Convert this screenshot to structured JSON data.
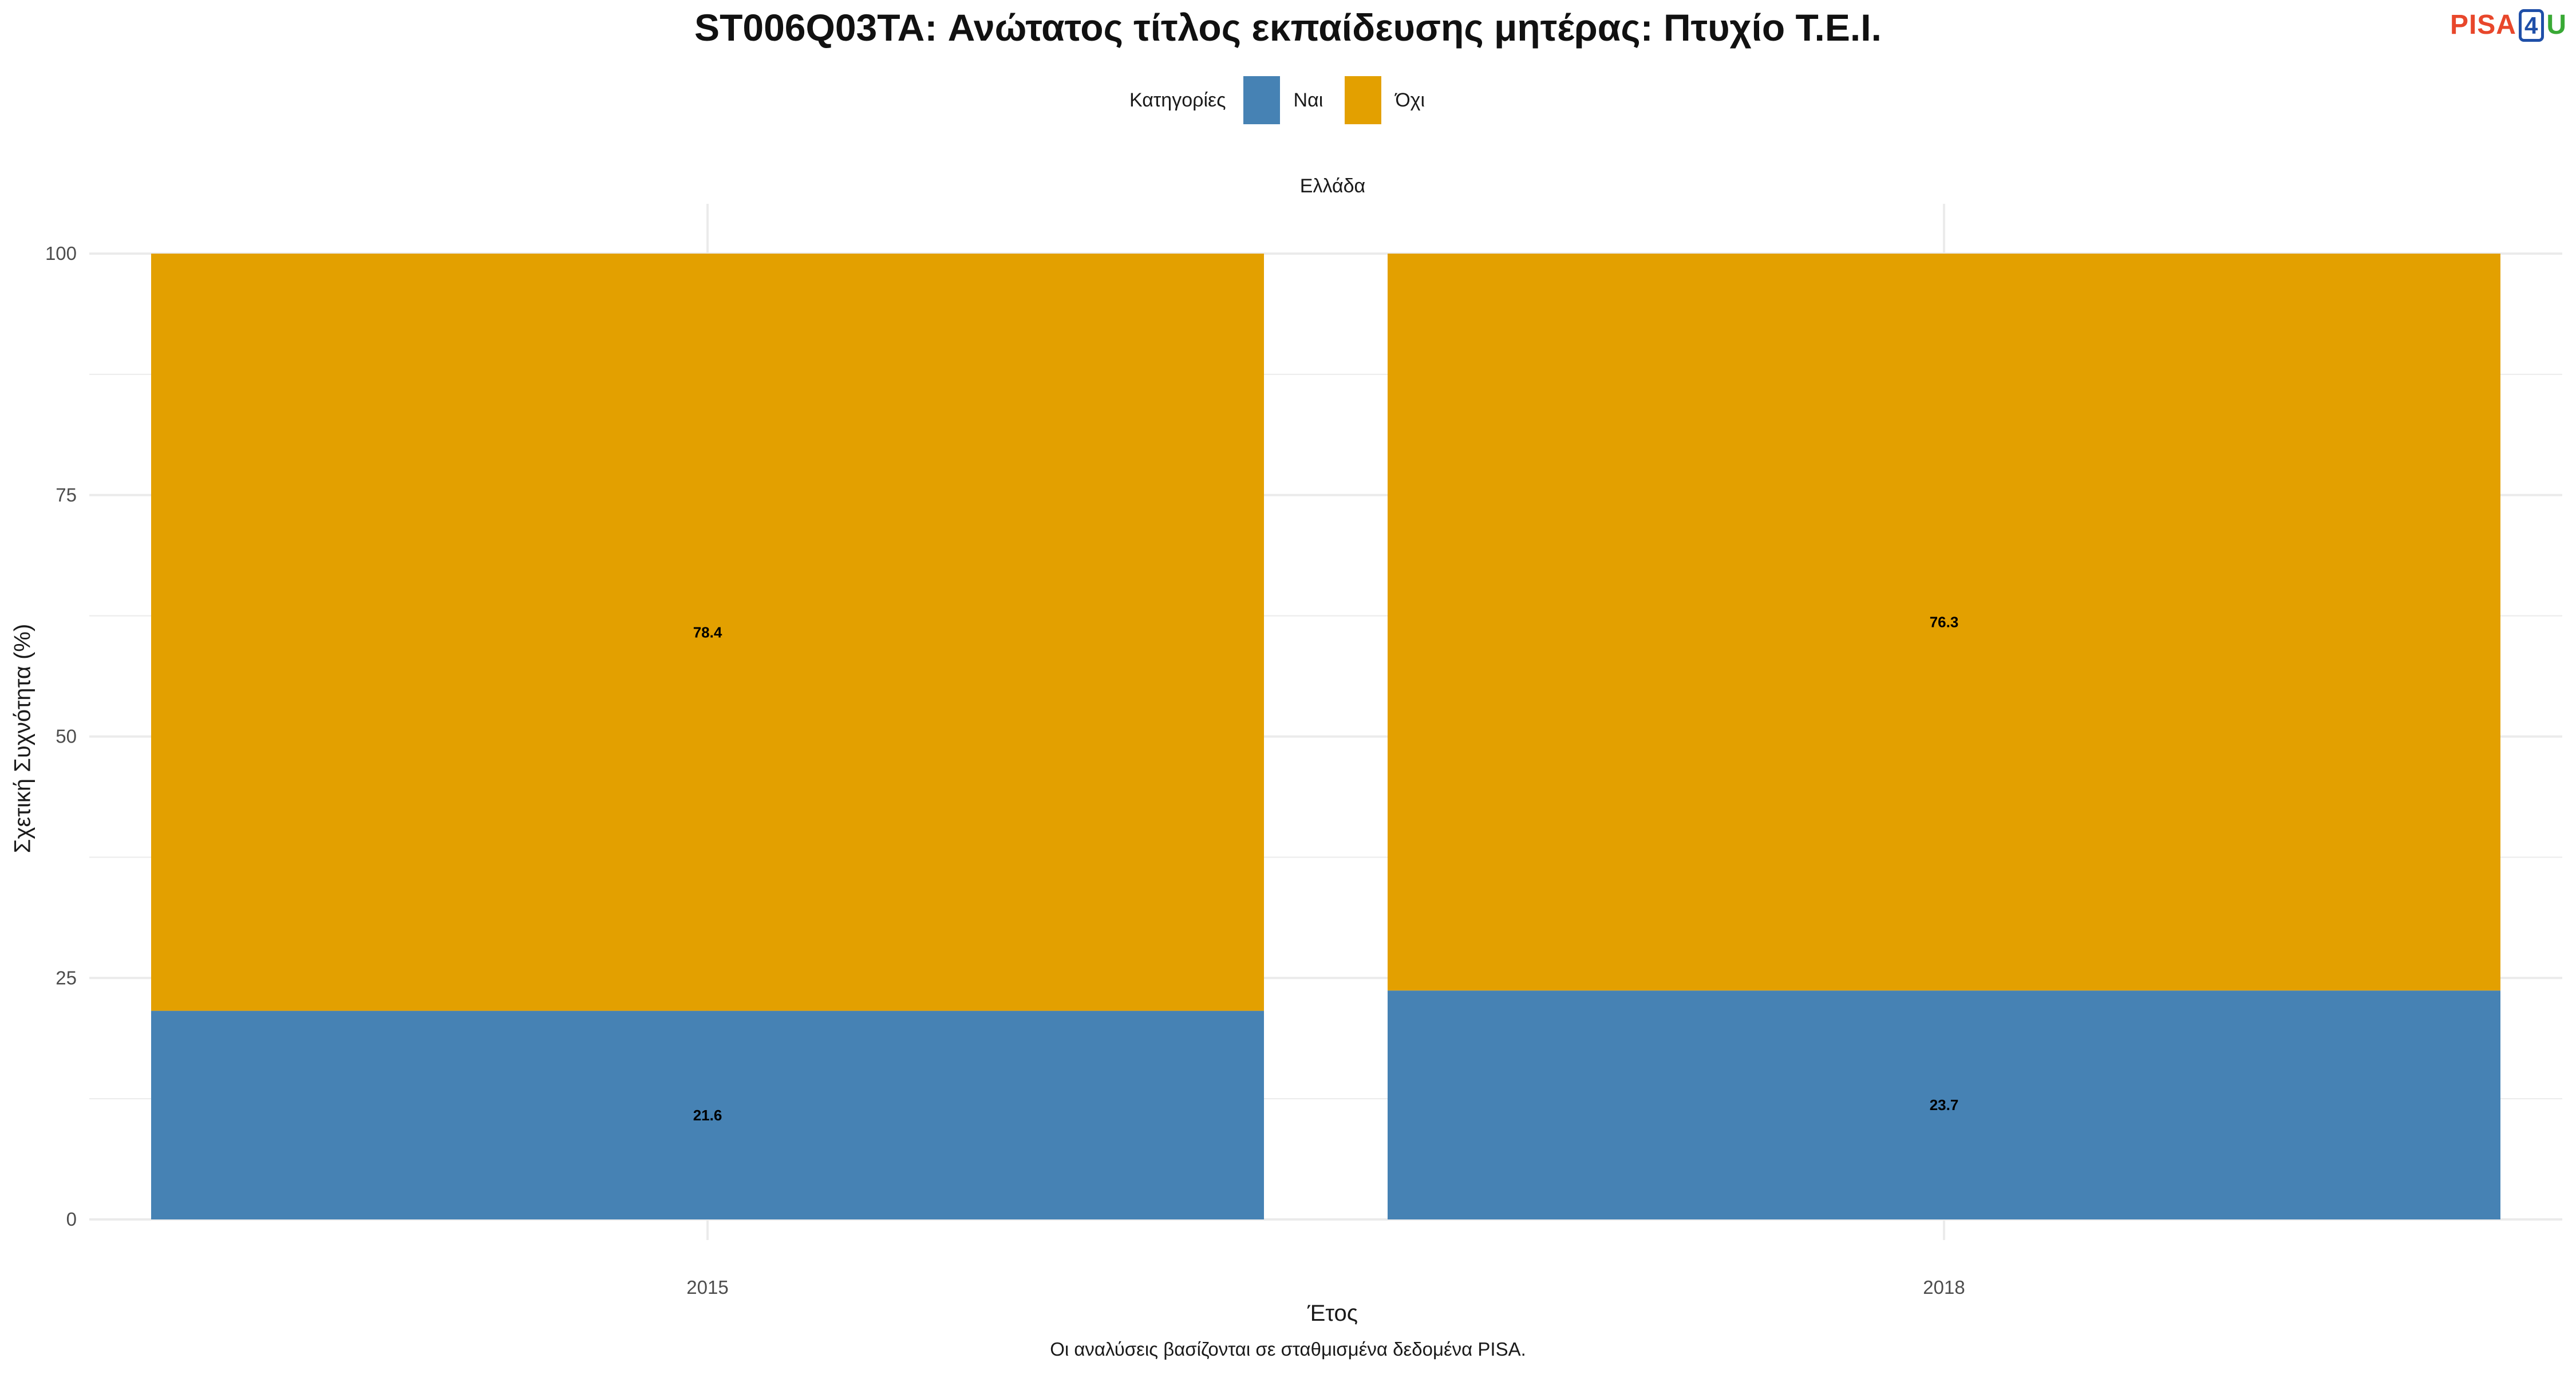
{
  "title": "ST006Q03TA: Ανώτατος τίτλος εκπαίδευσης μητέρας: Πτυχίο Τ.Ε.Ι.",
  "logo": {
    "part1": "PISA",
    "part2": "4",
    "part3": "U"
  },
  "legend": {
    "title": "Κατηγορίες"
  },
  "facet_label": "Ελλάδα",
  "caption": "Οι αναλύσεις βασίζονται σε σταθμισμένα δεδομένα PISA.",
  "colors": {
    "nai": "#4682b4",
    "oxi": "#e3a000",
    "grid": "#ebebeb"
  },
  "chart_data": {
    "type": "bar",
    "stacked": true,
    "categories": [
      "2015",
      "2018"
    ],
    "series": [
      {
        "name": "Ναι",
        "values": [
          21.6,
          23.7
        ],
        "labels": [
          "21.6",
          "23.7"
        ],
        "color": "#4682b4"
      },
      {
        "name": "Όχι",
        "values": [
          78.4,
          76.3
        ],
        "labels": [
          "78.4",
          "76.3"
        ],
        "color": "#e3a000"
      }
    ],
    "xlabel": "Έτος",
    "ylabel": "Σχετική Συχνότητα (%)",
    "ylim": [
      0,
      100
    ],
    "yticks": [
      0,
      25,
      50,
      75,
      100
    ],
    "grid": true,
    "legend_position": "top"
  }
}
